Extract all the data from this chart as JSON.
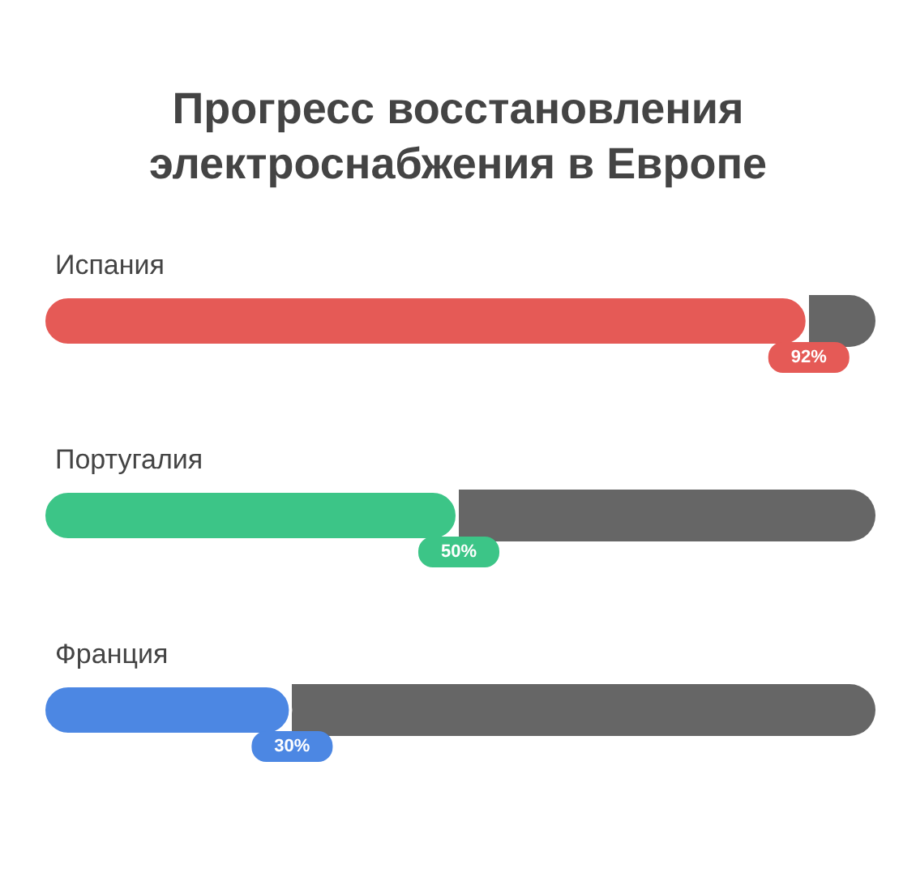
{
  "chart_data": {
    "type": "bar",
    "orientation": "horizontal",
    "title": "Прогресс восстановления электроснабжения в Европе",
    "categories": [
      "Испания",
      "Португалия",
      "Франция"
    ],
    "values": [
      92,
      50,
      30
    ],
    "colors": [
      "#e55a56",
      "#3cc587",
      "#4c87e3"
    ],
    "value_labels": [
      "92%",
      "50%",
      "30%"
    ],
    "xlim": [
      0,
      100
    ],
    "tick_labels": "y"
  }
}
